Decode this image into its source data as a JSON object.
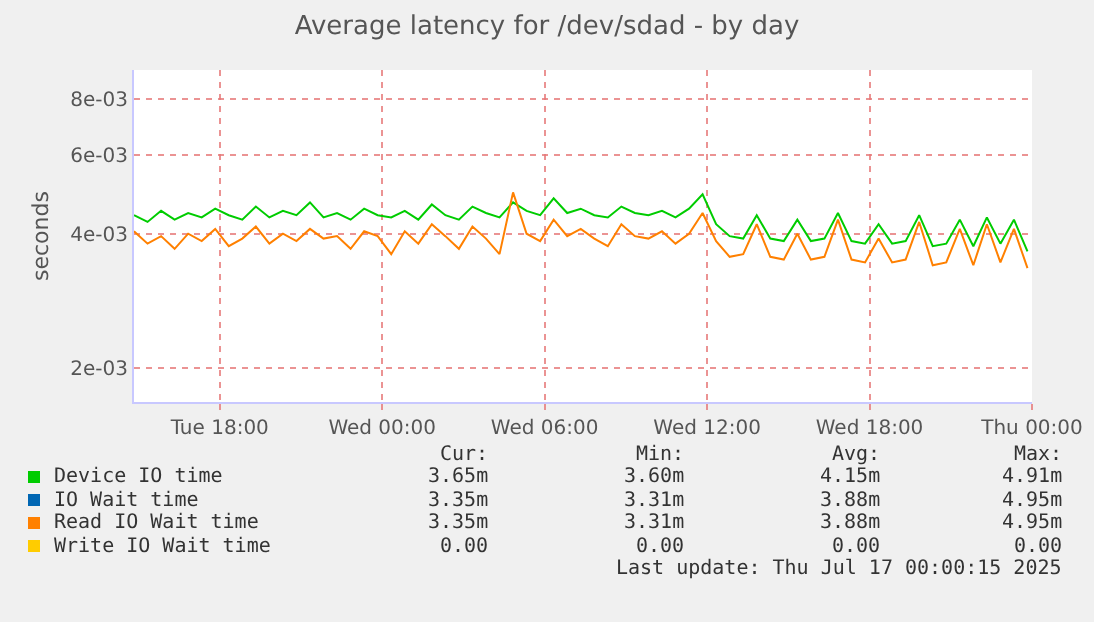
{
  "chart_data": {
    "type": "line",
    "title": "Average latency for /dev/sdad - by day",
    "ylabel": "seconds",
    "log": "y",
    "grid": true,
    "legend": "bottom left",
    "marker": "none",
    "line_style": "solid",
    "x": [
      "2025-07-15T14:50",
      "2025-07-15T15:20",
      "2025-07-15T15:50",
      "2025-07-15T16:20",
      "2025-07-15T16:50",
      "2025-07-15T17:20",
      "2025-07-15T17:50",
      "2025-07-15T18:20",
      "2025-07-15T18:50",
      "2025-07-15T19:20",
      "2025-07-15T19:50",
      "2025-07-15T20:20",
      "2025-07-15T20:50",
      "2025-07-15T21:20",
      "2025-07-15T21:50",
      "2025-07-15T22:20",
      "2025-07-15T22:50",
      "2025-07-15T23:20",
      "2025-07-15T23:50",
      "2025-07-16T00:20",
      "2025-07-16T00:50",
      "2025-07-16T01:20",
      "2025-07-16T01:50",
      "2025-07-16T02:20",
      "2025-07-16T02:50",
      "2025-07-16T03:20",
      "2025-07-16T03:50",
      "2025-07-16T04:20",
      "2025-07-16T04:50",
      "2025-07-16T05:20",
      "2025-07-16T05:50",
      "2025-07-16T06:20",
      "2025-07-16T06:50",
      "2025-07-16T07:20",
      "2025-07-16T07:50",
      "2025-07-16T08:20",
      "2025-07-16T08:50",
      "2025-07-16T09:20",
      "2025-07-16T09:50",
      "2025-07-16T10:20",
      "2025-07-16T10:50",
      "2025-07-16T11:20",
      "2025-07-16T11:50",
      "2025-07-16T12:20",
      "2025-07-16T12:50",
      "2025-07-16T13:20",
      "2025-07-16T13:50",
      "2025-07-16T14:20",
      "2025-07-16T14:50",
      "2025-07-16T15:20",
      "2025-07-16T15:50",
      "2025-07-16T16:20",
      "2025-07-16T16:50",
      "2025-07-16T17:20",
      "2025-07-16T17:50",
      "2025-07-16T18:20",
      "2025-07-16T18:50",
      "2025-07-16T19:20",
      "2025-07-16T19:50",
      "2025-07-16T20:20",
      "2025-07-16T20:50",
      "2025-07-16T21:20",
      "2025-07-16T21:50",
      "2025-07-16T22:20",
      "2025-07-16T22:50",
      "2025-07-16T23:20",
      "2025-07-16T23:50"
    ],
    "xlim": [
      "2025-07-15T14:50",
      "2025-07-17T00:00"
    ],
    "xticks": [
      {
        "value": "2025-07-15T18:00",
        "label": "Tue 18:00"
      },
      {
        "value": "2025-07-16T00:00",
        "label": "Wed 00:00"
      },
      {
        "value": "2025-07-16T06:00",
        "label": "Wed 06:00"
      },
      {
        "value": "2025-07-16T12:00",
        "label": "Wed 12:00"
      },
      {
        "value": "2025-07-16T18:00",
        "label": "Wed 18:00"
      },
      {
        "value": "2025-07-17T00:00",
        "label": "Thu 00:00"
      }
    ],
    "ylim": [
      0.00168,
      0.0093
    ],
    "yticks": [
      {
        "value": 0.002,
        "label": "2e-03"
      },
      {
        "value": 0.004,
        "label": "4e-03"
      },
      {
        "value": 0.006,
        "label": "6e-03"
      },
      {
        "value": 0.008,
        "label": "8e-03"
      }
    ],
    "series": [
      {
        "name": "Device IO time",
        "color": "#00cc00",
        "values": [
          0.0044,
          0.00425,
          0.0045,
          0.0043,
          0.00445,
          0.00435,
          0.00455,
          0.0044,
          0.0043,
          0.0046,
          0.00435,
          0.0045,
          0.0044,
          0.0047,
          0.00435,
          0.00445,
          0.0043,
          0.00455,
          0.0044,
          0.00435,
          0.0045,
          0.0043,
          0.00465,
          0.0044,
          0.0043,
          0.0046,
          0.00445,
          0.00435,
          0.0047,
          0.0045,
          0.0044,
          0.0048,
          0.00445,
          0.00455,
          0.0044,
          0.00435,
          0.0046,
          0.00445,
          0.0044,
          0.0045,
          0.00435,
          0.00455,
          0.0049,
          0.0042,
          0.00395,
          0.0039,
          0.0044,
          0.0039,
          0.00385,
          0.0043,
          0.00385,
          0.0039,
          0.00445,
          0.00385,
          0.0038,
          0.0042,
          0.0038,
          0.00385,
          0.0044,
          0.00375,
          0.0038,
          0.0043,
          0.00375,
          0.00435,
          0.0038,
          0.0043,
          0.00365
        ]
      },
      {
        "name": "IO Wait time",
        "color": "#0066b3",
        "values": [
          null,
          null,
          null,
          null,
          null,
          null,
          null,
          null,
          null,
          null,
          null,
          null,
          null,
          null,
          null,
          null,
          null,
          null,
          null,
          null,
          null,
          null,
          null,
          null,
          null,
          null,
          null,
          null,
          null,
          null,
          null,
          null,
          null,
          null,
          null,
          null,
          null,
          null,
          null,
          null,
          null,
          null,
          null,
          null,
          null,
          null,
          null,
          null,
          null,
          null,
          null,
          null,
          null,
          null,
          null,
          null,
          null,
          null,
          null,
          null,
          null,
          null,
          null,
          null,
          null,
          null,
          null
        ]
      },
      {
        "name": "Read IO Wait time",
        "color": "#ff8000",
        "values": [
          0.00405,
          0.0038,
          0.00395,
          0.0037,
          0.004,
          0.00385,
          0.0041,
          0.00375,
          0.0039,
          0.00415,
          0.0038,
          0.004,
          0.00385,
          0.0041,
          0.0039,
          0.00395,
          0.0037,
          0.00405,
          0.00395,
          0.0036,
          0.00405,
          0.0038,
          0.0042,
          0.00395,
          0.0037,
          0.00415,
          0.0039,
          0.0036,
          0.00495,
          0.004,
          0.00385,
          0.0043,
          0.00395,
          0.0041,
          0.0039,
          0.00375,
          0.0042,
          0.00395,
          0.0039,
          0.00405,
          0.0038,
          0.004,
          0.00445,
          0.00385,
          0.00355,
          0.0036,
          0.0042,
          0.00355,
          0.0035,
          0.004,
          0.0035,
          0.00355,
          0.0043,
          0.0035,
          0.00345,
          0.0039,
          0.00345,
          0.0035,
          0.00425,
          0.0034,
          0.00345,
          0.0041,
          0.0034,
          0.0042,
          0.00345,
          0.0041,
          0.00335
        ]
      },
      {
        "name": "Write IO Wait time",
        "color": "#ffcc00",
        "values": [
          null,
          null,
          null,
          null,
          null,
          null,
          null,
          null,
          null,
          null,
          null,
          null,
          null,
          null,
          null,
          null,
          null,
          null,
          null,
          null,
          null,
          null,
          null,
          null,
          null,
          null,
          null,
          null,
          null,
          null,
          null,
          null,
          null,
          null,
          null,
          null,
          null,
          null,
          null,
          null,
          null,
          null,
          null,
          null,
          null,
          null,
          null,
          null,
          null,
          null,
          null,
          null,
          null,
          null,
          null,
          null,
          null,
          null,
          null,
          null,
          null,
          null,
          null,
          null,
          null,
          null,
          null
        ]
      }
    ],
    "annotations": [
      "Cur:",
      "Min:",
      "Avg:",
      "Max:",
      "3.65m",
      "3.60m",
      "4.15m",
      "4.91m",
      "3.35m",
      "3.31m",
      "3.88m",
      "4.95m",
      "3.35m",
      "3.31m",
      "3.88m",
      "4.95m",
      "0.00",
      "0.00",
      "0.00",
      "0.00",
      "Last update: Thu Jul 17 00:00:15 2025"
    ]
  }
}
